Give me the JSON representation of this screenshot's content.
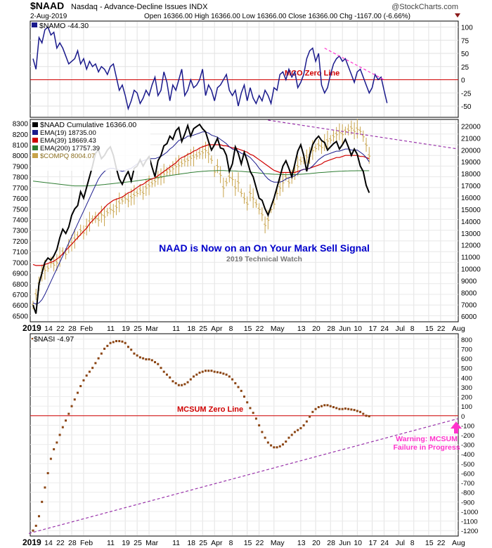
{
  "header": {
    "symbol": "$NAAD",
    "description": "Nasdaq - Advance-Decline Issues INDX",
    "watermark": "@StockCharts.com",
    "date": "2-Aug-2019",
    "ohlc": "Open 16366.00  High 16366.00  Low 16366.00  Close 16366.00  Chg -1167.00 (-6.66%)"
  },
  "colors": {
    "blue": "#1a1a8c",
    "black": "#000000",
    "red": "#d00000",
    "green": "#2e7d32",
    "tan": "#c8a34a",
    "magenta": "#ff33cc",
    "purple": "#9933aa",
    "brown": "#8b4513",
    "label_blue": "#0000cc"
  },
  "chart_data": [
    {
      "id": "namo",
      "type": "line",
      "title": "$NAMO -44.30",
      "ylim": [
        -70,
        110
      ],
      "yticks": [
        -50,
        -25,
        0,
        25,
        50,
        75,
        100
      ],
      "zero_label": "MCO Zero Line",
      "series": [
        {
          "name": "$NAMO",
          "values": [
            40,
            20,
            80,
            70,
            95,
            100,
            85,
            90,
            60,
            70,
            60,
            45,
            30,
            35,
            40,
            55,
            30,
            40,
            20,
            35,
            25,
            30,
            15,
            25,
            20,
            10,
            25,
            30,
            5,
            -20,
            -10,
            -30,
            -55,
            -40,
            -20,
            -25,
            -45,
            -35,
            -20,
            -30,
            -10,
            5,
            -30,
            -20,
            15,
            -5,
            -40,
            -10,
            -20,
            0,
            20,
            -30,
            -20,
            0,
            -15,
            -10,
            0,
            20,
            -30,
            -10,
            -20,
            -40,
            -15,
            -10,
            0,
            10,
            -20,
            -30,
            -20,
            -50,
            -25,
            -10,
            -40,
            -15,
            -35,
            -45,
            -30,
            -40,
            -20,
            -30,
            -45,
            -15,
            -20,
            10,
            15,
            0,
            20,
            5,
            15,
            -15,
            -5,
            10,
            40,
            55,
            60,
            35,
            50,
            -10,
            -25,
            -15,
            10,
            30,
            40,
            45,
            35,
            40,
            25,
            10,
            -5,
            15,
            20,
            5,
            -10,
            -25,
            -15,
            10,
            0,
            5,
            -20,
            -44.3
          ]
        }
      ],
      "trendline": {
        "x": [
          98,
          118
        ],
        "y": [
          60,
          0
        ]
      }
    },
    {
      "id": "naad",
      "type": "line",
      "legend": [
        "$NAAD Cumulative 16366.00",
        "EMA(19) 18735.00",
        "EMA(39) 18669.43",
        "EMA(200) 17757.39",
        "$COMPQ 8004.07"
      ],
      "yticks_left": [
        6500,
        6600,
        6700,
        6800,
        6900,
        7000,
        7100,
        7200,
        7300,
        7400,
        7500,
        7600,
        7700,
        7800,
        7900,
        8000,
        8100,
        8200,
        8300
      ],
      "ylim_left": [
        6450,
        8330
      ],
      "yticks_right": [
        6000,
        7000,
        8000,
        9000,
        10000,
        11000,
        12000,
        13000,
        14000,
        15000,
        16000,
        17000,
        18000,
        19000,
        20000,
        21000,
        22000
      ],
      "ylim_right": [
        5600,
        22500
      ],
      "x_labels": [
        "2019",
        "14",
        "22",
        "28",
        "Feb",
        "11",
        "19",
        "25",
        "Mar",
        "11",
        "18",
        "25",
        "Apr",
        "8",
        "15",
        "22",
        "May",
        "13",
        "20",
        "28",
        "Jun",
        "10",
        "17",
        "24",
        "Jul",
        "8",
        "15",
        "22",
        "Aug"
      ],
      "x_label_pos": [
        0,
        5,
        9,
        13,
        17,
        26,
        31,
        35,
        39,
        48,
        53,
        57,
        61,
        67,
        72,
        76,
        81,
        90,
        95,
        100,
        104,
        109,
        114,
        118,
        123,
        128,
        133,
        137,
        142
      ],
      "series": [
        {
          "name": "$NAAD Cumulative",
          "values": [
            6600,
            6520,
            6800,
            6900,
            7000,
            7040,
            7020,
            7060,
            7120,
            7230,
            7310,
            7270,
            7330,
            7440,
            7500,
            7530,
            7660,
            7600,
            7700,
            7800,
            7900,
            8020,
            8050,
            7970,
            8000,
            8050,
            8080,
            8000,
            7880,
            7780,
            7730,
            7800,
            7850,
            7760,
            7880,
            7900,
            7960,
            7900,
            7950,
            7990,
            7890,
            7800,
            7950,
            8000,
            8090,
            8110,
            8180,
            8150,
            8230,
            8260,
            8130,
            8200,
            8280,
            8180,
            8250,
            8270,
            8290,
            8250,
            8220,
            8130,
            8050,
            8100,
            8160,
            8070,
            8060,
            8000,
            7850,
            7920,
            8080,
            8020,
            7920,
            8030,
            7950,
            7850,
            7800,
            7700,
            7600,
            7580,
            7500,
            7440,
            7520,
            7600,
            7700,
            7800,
            7900,
            7950,
            7880,
            7800,
            7920,
            8040,
            8100,
            8000,
            7850,
            8000,
            8100,
            8150,
            8180,
            8140,
            8120,
            8050,
            8080,
            8110,
            8130,
            8060,
            8100,
            8150,
            8080,
            8000,
            8060,
            8010,
            7900,
            7850,
            7720,
            7650
          ]
        },
        {
          "name": "EMA(19)",
          "values": [
            6620,
            6610,
            6620,
            6650,
            6700,
            6760,
            6820,
            6880,
            6940,
            7000,
            7060,
            7120,
            7180,
            7240,
            7300,
            7360,
            7420,
            7480,
            7540,
            7600,
            7660,
            7720,
            7780,
            7820,
            7850,
            7870,
            7880,
            7880,
            7870,
            7860,
            7850,
            7860,
            7870,
            7880,
            7900,
            7920,
            7940,
            7950,
            7960,
            7970,
            7970,
            7970,
            7980,
            7990,
            8010,
            8030,
            8060,
            8080,
            8110,
            8140,
            8150,
            8160,
            8180,
            8180,
            8190,
            8200,
            8210,
            8220,
            8220,
            8210,
            8190,
            8180,
            8170,
            8150,
            8130,
            8110,
            8080,
            8060,
            8050,
            8040,
            8020,
            8010,
            8000,
            7980,
            7950,
            7920,
            7880,
            7850,
            7810,
            7780,
            7760,
            7750,
            7750,
            7750,
            7760,
            7780,
            7790,
            7800,
            7810,
            7830,
            7860,
            7870,
            7870,
            7880,
            7900,
            7930,
            7960,
            7980,
            8000,
            8010,
            8020,
            8030,
            8040,
            8040,
            8050,
            8060,
            8060,
            8050,
            8050,
            8050,
            8030,
            8010,
            7980,
            7940
          ]
        },
        {
          "name": "EMA(39)",
          "values": [
            6980,
            6970,
            6970,
            6970,
            6980,
            6990,
            7000,
            7010,
            7030,
            7050,
            7080,
            7110,
            7140,
            7170,
            7200,
            7230,
            7260,
            7290,
            7320,
            7360,
            7390,
            7420,
            7450,
            7480,
            7510,
            7540,
            7560,
            7580,
            7590,
            7600,
            7610,
            7630,
            7650,
            7660,
            7680,
            7700,
            7720,
            7730,
            7750,
            7770,
            7780,
            7790,
            7810,
            7830,
            7850,
            7870,
            7890,
            7910,
            7930,
            7960,
            7980,
            7990,
            8010,
            8020,
            8040,
            8050,
            8070,
            8080,
            8090,
            8100,
            8100,
            8100,
            8100,
            8100,
            8090,
            8090,
            8080,
            8070,
            8070,
            8060,
            8050,
            8040,
            8030,
            8010,
            8000,
            7980,
            7960,
            7940,
            7920,
            7900,
            7880,
            7860,
            7850,
            7840,
            7840,
            7840,
            7840,
            7840,
            7840,
            7850,
            7860,
            7870,
            7870,
            7880,
            7890,
            7900,
            7910,
            7920,
            7940,
            7950,
            7960,
            7970,
            7980,
            7980,
            7990,
            8000,
            8000,
            8000,
            8000,
            8000,
            7990,
            7990,
            7980,
            7970
          ]
        },
        {
          "name": "EMA(200)",
          "values": [
            7760,
            7757,
            7753,
            7750,
            7747,
            7743,
            7740,
            7737,
            7733,
            7730,
            7727,
            7723,
            7720,
            7717,
            7715,
            7715,
            7715,
            7715,
            7715,
            7716,
            7718,
            7720,
            7722,
            7725,
            7728,
            7731,
            7734,
            7737,
            7740,
            7743,
            7746,
            7749,
            7752,
            7755,
            7759,
            7763,
            7767,
            7771,
            7775,
            7779,
            7783,
            7788,
            7793,
            7798,
            7803,
            7808,
            7812,
            7816,
            7820,
            7824,
            7828,
            7832,
            7836,
            7840,
            7843,
            7846,
            7849,
            7851,
            7853,
            7855,
            7856,
            7857,
            7858,
            7858,
            7858,
            7857,
            7856,
            7855,
            7854,
            7852,
            7851,
            7849,
            7846,
            7844,
            7841,
            7838,
            7835,
            7833,
            7830,
            7828,
            7826,
            7824,
            7823,
            7822,
            7821,
            7820,
            7820,
            7820,
            7821,
            7822,
            7824,
            7826,
            7828,
            7830,
            7833,
            7836,
            7838,
            7840,
            7842,
            7844,
            7846,
            7848,
            7850,
            7852,
            7853,
            7854,
            7855,
            7856,
            7856,
            7857,
            7857,
            7857,
            7857,
            7857
          ]
        },
        {
          "name": "$COMPQ",
          "values": [
            6600,
            6700,
            6800,
            6900,
            6930,
            6950,
            7000,
            6980,
            7000,
            7050,
            7100,
            7080,
            7150,
            7180,
            7220,
            7250,
            7300,
            7280,
            7330,
            7380,
            7400,
            7420,
            7400,
            7450,
            7430,
            7470,
            7500,
            7480,
            7520,
            7560,
            7580,
            7600,
            7580,
            7610,
            7630,
            7650,
            7680,
            7650,
            7700,
            7720,
            7740,
            7760,
            7790,
            7800,
            7830,
            7850,
            7860,
            7880,
            7900,
            7910,
            7930,
            7950,
            7960,
            7980,
            7990,
            8000,
            8020,
            8030,
            8050,
            8020,
            7960,
            7850,
            7900,
            7820,
            7700,
            7750,
            7800,
            7780,
            7700,
            7750,
            7650,
            7600,
            7550,
            7650,
            7600,
            7550,
            7500,
            7450,
            7350,
            7400,
            7500,
            7550,
            7650,
            7700,
            7750,
            7800,
            7750,
            7800,
            7850,
            7900,
            7950,
            7970,
            7990,
            8000,
            8050,
            8070,
            8100,
            8080,
            8120,
            8140,
            8150,
            8180,
            8200,
            8220,
            8200,
            8230,
            8240,
            8260,
            8230,
            8250,
            8230,
            8180,
            8100,
            8000
          ]
        }
      ],
      "annotations": {
        "title": "NAAD is Now on an On Your Mark Sell Signal",
        "subtitle": "2019 Technical Watch"
      },
      "trendline": {
        "x": [
          79,
          142
        ],
        "y": [
          8330,
          8060
        ]
      }
    },
    {
      "id": "nasi",
      "type": "scatter",
      "title": "$NASI -4.97",
      "ylim": [
        -1250,
        850
      ],
      "yticks": [
        -1200,
        -1100,
        -1000,
        -900,
        -800,
        -700,
        -600,
        -500,
        -400,
        -300,
        -200,
        -100,
        0,
        100,
        200,
        300,
        400,
        500,
        600,
        700,
        800
      ],
      "zero_label": "MCSUM Zero Line",
      "warning": [
        "Warning: MCSUM",
        "Failure in Progress"
      ],
      "series": [
        {
          "name": "$NASI",
          "values": [
            -1200,
            -1150,
            -1050,
            -900,
            -750,
            -600,
            -450,
            -350,
            -280,
            -200,
            -120,
            -50,
            20,
            100,
            170,
            240,
            310,
            370,
            420,
            460,
            500,
            550,
            600,
            650,
            700,
            730,
            760,
            770,
            780,
            780,
            775,
            760,
            720,
            690,
            650,
            630,
            610,
            600,
            590,
            590,
            580,
            560,
            540,
            500,
            460,
            430,
            400,
            360,
            340,
            320,
            320,
            330,
            350,
            380,
            410,
            430,
            450,
            460,
            470,
            470,
            470,
            460,
            455,
            450,
            440,
            430,
            410,
            380,
            340,
            300,
            260,
            200,
            140,
            80,
            30,
            -30,
            -100,
            -170,
            -230,
            -280,
            -310,
            -330,
            -330,
            -320,
            -300,
            -270,
            -230,
            -200,
            -170,
            -150,
            -130,
            -100,
            -60,
            -10,
            40,
            70,
            90,
            100,
            110,
            110,
            100,
            90,
            80,
            70,
            70,
            75,
            70,
            65,
            60,
            50,
            40,
            20,
            0,
            -4.97
          ]
        }
      ],
      "trendline": {
        "x": [
          0,
          142
        ],
        "y": [
          -1230,
          -30
        ]
      }
    }
  ]
}
